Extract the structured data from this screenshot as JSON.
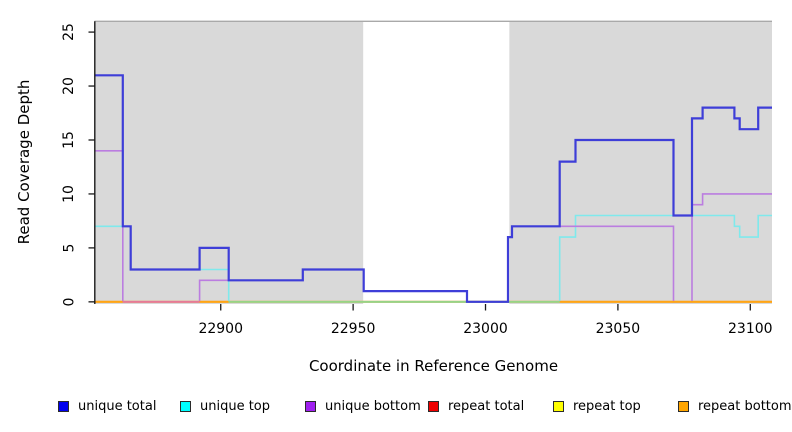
{
  "chart_data": {
    "type": "line",
    "subtype": "step-coverage-plot",
    "title": "",
    "xlabel": "Coordinate in Reference Genome",
    "ylabel": "Read Coverage Depth",
    "xlim": [
      22852.7,
      23108.2
    ],
    "ylim": [
      -0.2,
      26.0
    ],
    "xticks": [
      "22900",
      "22950",
      "23000",
      "23050",
      "23100"
    ],
    "xtick_values": [
      22900,
      22950,
      23000,
      23050,
      23100
    ],
    "yticks": [
      "0",
      "5",
      "10",
      "15",
      "20",
      "25"
    ],
    "ytick_values": [
      0,
      5,
      10,
      15,
      20,
      25
    ],
    "grid": false,
    "legend_position": "bottom",
    "plot_background": "#ffffff",
    "shaded_regions": [
      {
        "x0": 22852.7,
        "x1": 22953.8,
        "color": "#d9d9d9"
      },
      {
        "x0": 23009.0,
        "x1": 23108.2,
        "color": "#d9d9d9"
      }
    ],
    "unshaded_gap": {
      "x0": 22953.8,
      "x1": 23009.0
    },
    "top_border_color": "#a9a9a9",
    "axis_color": "#1a1a1a",
    "series": [
      {
        "name": "unique total",
        "legend_color": "#0000ee",
        "line_color": "#3e3ed8",
        "line_width": 2.2,
        "steps": [
          [
            22852.7,
            21
          ],
          [
            22863,
            7
          ],
          [
            22866,
            3
          ],
          [
            22892,
            5
          ],
          [
            22903,
            2
          ],
          [
            22931,
            3
          ],
          [
            22954,
            1
          ],
          [
            22993,
            0
          ],
          [
            23008.5,
            6
          ],
          [
            23010,
            7
          ],
          [
            23028,
            13
          ],
          [
            23034,
            15
          ],
          [
            23071,
            8
          ],
          [
            23078,
            17
          ],
          [
            23082,
            18
          ],
          [
            23094,
            17
          ],
          [
            23096,
            16
          ],
          [
            23103,
            18
          ],
          [
            23108.2,
            18
          ]
        ]
      },
      {
        "name": "unique top",
        "legend_color": "#00ffff",
        "line_color": "#7fe9ec",
        "line_width": 1.6,
        "steps": [
          [
            22852.7,
            7
          ],
          [
            22866,
            3
          ],
          [
            22903,
            0
          ],
          [
            23028,
            6
          ],
          [
            23034,
            8
          ],
          [
            23094,
            7
          ],
          [
            23096,
            6
          ],
          [
            23103,
            8
          ],
          [
            23108.2,
            8
          ]
        ]
      },
      {
        "name": "unique bottom",
        "legend_color": "#a020f0",
        "line_color": "#bb7de0",
        "line_width": 1.6,
        "steps": [
          [
            22852.7,
            14
          ],
          [
            22863,
            0
          ],
          [
            22892,
            2
          ],
          [
            22931,
            3
          ],
          [
            22954,
            1
          ],
          [
            22993,
            0
          ],
          [
            23008.5,
            6
          ],
          [
            23010,
            7
          ],
          [
            23071,
            0
          ],
          [
            23078,
            9
          ],
          [
            23082,
            10
          ],
          [
            23108.2,
            10
          ]
        ]
      },
      {
        "name": "repeat total",
        "legend_color": "#ee0000",
        "line_color": "#e57a99",
        "line_width": 1.8,
        "steps": [
          [
            22852.7,
            0
          ],
          [
            23108.2,
            0
          ]
        ]
      },
      {
        "name": "repeat top",
        "legend_color": "#ffff00",
        "line_color": "#f2eda0",
        "line_width": 1.8,
        "steps": [
          [
            22852.7,
            0
          ],
          [
            23108.2,
            0
          ]
        ]
      },
      {
        "name": "repeat bottom",
        "legend_color": "#ffa500",
        "line_color": "#ffa515",
        "line_width": 1.8,
        "steps": [
          [
            22852.7,
            0
          ],
          [
            23108.2,
            0
          ]
        ]
      }
    ],
    "zero_line_segments": [
      {
        "x0": 22852.7,
        "x1": 22863,
        "color": "#ffa515"
      },
      {
        "x0": 22863,
        "x1": 22892,
        "color": "#e57a99"
      },
      {
        "x0": 22892,
        "x1": 22903,
        "color": "#ffa515"
      },
      {
        "x0": 22903,
        "x1": 23028,
        "color": "#95d488"
      },
      {
        "x0": 23028,
        "x1": 23108.2,
        "color": "#ffa515"
      }
    ],
    "legend": [
      {
        "label": "unique total",
        "color": "#0000ee"
      },
      {
        "label": "unique top",
        "color": "#00ffff"
      },
      {
        "label": "unique bottom",
        "color": "#a020f0"
      },
      {
        "label": "repeat total",
        "color": "#ee0000"
      },
      {
        "label": "repeat top",
        "color": "#ffff00"
      },
      {
        "label": "repeat bottom",
        "color": "#ffa500"
      }
    ]
  }
}
